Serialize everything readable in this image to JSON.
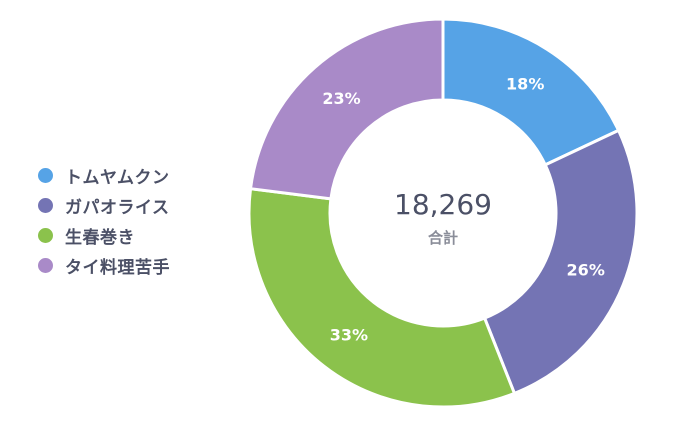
{
  "chart_data": {
    "type": "pie",
    "variant": "donut",
    "categories": [
      "トムヤムクン",
      "ガパオライス",
      "生春巻き",
      "タイ料理苦手"
    ],
    "values": [
      18,
      26,
      33,
      23
    ],
    "unit": "%",
    "data_labels": [
      "18%",
      "26%",
      "33%",
      "23%"
    ],
    "colors": [
      "#56a3e6",
      "#7474b4",
      "#8bc24c",
      "#a98ac8"
    ],
    "center_total": "18,269",
    "center_caption": "合計",
    "legend": {
      "position": "left",
      "entries": [
        "トムヤムクン",
        "ガパオライス",
        "生春巻き",
        "タイ料理苦手"
      ]
    }
  }
}
